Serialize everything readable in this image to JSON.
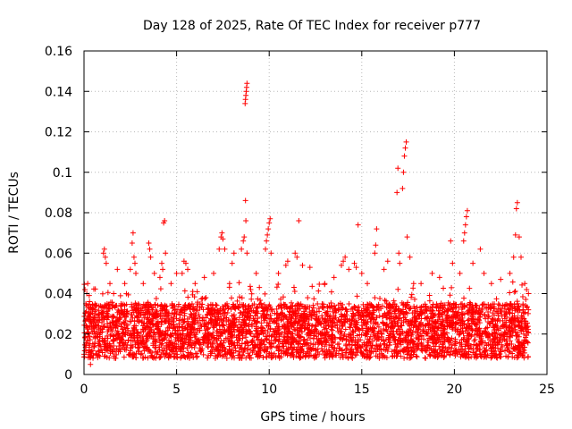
{
  "chart_data": {
    "type": "scatter",
    "title": "Day 128 of 2025, Rate Of TEC Index for receiver p777",
    "xlabel": "GPS time / hours",
    "ylabel": "ROTI / TECUs",
    "xlim": [
      0,
      25
    ],
    "ylim": [
      0,
      0.16
    ],
    "xticks": [
      0,
      5,
      10,
      15,
      20,
      25
    ],
    "xtick_labels": [
      "0",
      "5",
      "10",
      "15",
      "20",
      "25"
    ],
    "yticks": [
      0,
      0.02,
      0.04,
      0.06,
      0.08,
      0.1,
      0.12,
      0.14,
      0.16
    ],
    "ytick_labels": [
      "0",
      "0.02",
      "0.04",
      "0.06",
      "0.08",
      "0.1",
      "0.12",
      "0.14",
      "0.16"
    ],
    "grid": true,
    "marker": "+",
    "color": "#ff0000",
    "dense_band": {
      "x_range": [
        0,
        24
      ],
      "typical_y_range": [
        0.008,
        0.035
      ],
      "samples_per_hour": 160
    },
    "series": [
      {
        "name": "ROTI samples (representative)",
        "points": [
          [
            0.05,
            0.042
          ],
          [
            0.1,
            0.035
          ],
          [
            0.15,
            0.04
          ],
          [
            0.2,
            0.045
          ],
          [
            0.3,
            0.036
          ],
          [
            0.35,
            0.005
          ],
          [
            0.6,
            0.032
          ],
          [
            0.8,
            0.03
          ],
          [
            1.05,
            0.06
          ],
          [
            1.1,
            0.062
          ],
          [
            1.15,
            0.058
          ],
          [
            1.2,
            0.055
          ],
          [
            1.4,
            0.045
          ],
          [
            1.6,
            0.04
          ],
          [
            1.8,
            0.052
          ],
          [
            2.0,
            0.035
          ],
          [
            2.2,
            0.045
          ],
          [
            2.5,
            0.052
          ],
          [
            2.6,
            0.065
          ],
          [
            2.65,
            0.07
          ],
          [
            2.7,
            0.058
          ],
          [
            2.75,
            0.055
          ],
          [
            2.8,
            0.05
          ],
          [
            3.2,
            0.045
          ],
          [
            3.5,
            0.065
          ],
          [
            3.55,
            0.062
          ],
          [
            3.6,
            0.058
          ],
          [
            3.8,
            0.05
          ],
          [
            4.1,
            0.048
          ],
          [
            4.2,
            0.055
          ],
          [
            4.25,
            0.052
          ],
          [
            4.3,
            0.075
          ],
          [
            4.35,
            0.076
          ],
          [
            4.4,
            0.06
          ],
          [
            4.7,
            0.045
          ],
          [
            5.0,
            0.05
          ],
          [
            5.3,
            0.05
          ],
          [
            5.4,
            0.056
          ],
          [
            5.5,
            0.055
          ],
          [
            5.6,
            0.052
          ],
          [
            6.0,
            0.045
          ],
          [
            6.5,
            0.048
          ],
          [
            7.0,
            0.05
          ],
          [
            7.3,
            0.062
          ],
          [
            7.4,
            0.068
          ],
          [
            7.45,
            0.07
          ],
          [
            7.5,
            0.067
          ],
          [
            7.6,
            0.062
          ],
          [
            8.0,
            0.055
          ],
          [
            8.1,
            0.06
          ],
          [
            8.5,
            0.062
          ],
          [
            8.6,
            0.066
          ],
          [
            8.65,
            0.068
          ],
          [
            8.7,
            0.134
          ],
          [
            8.72,
            0.136
          ],
          [
            8.74,
            0.138
          ],
          [
            8.76,
            0.14
          ],
          [
            8.78,
            0.142
          ],
          [
            8.8,
            0.144
          ],
          [
            8.72,
            0.086
          ],
          [
            8.74,
            0.076
          ],
          [
            8.8,
            0.06
          ],
          [
            9.0,
            0.042
          ],
          [
            9.3,
            0.05
          ],
          [
            9.8,
            0.062
          ],
          [
            9.85,
            0.066
          ],
          [
            9.9,
            0.069
          ],
          [
            9.95,
            0.072
          ],
          [
            10.0,
            0.075
          ],
          [
            10.05,
            0.077
          ],
          [
            10.1,
            0.06
          ],
          [
            10.5,
            0.05
          ],
          [
            10.9,
            0.054
          ],
          [
            11.0,
            0.056
          ],
          [
            11.4,
            0.06
          ],
          [
            11.5,
            0.058
          ],
          [
            11.6,
            0.076
          ],
          [
            11.8,
            0.054
          ],
          [
            12.2,
            0.053
          ],
          [
            13.0,
            0.045
          ],
          [
            13.5,
            0.048
          ],
          [
            13.9,
            0.054
          ],
          [
            14.0,
            0.056
          ],
          [
            14.1,
            0.058
          ],
          [
            14.3,
            0.052
          ],
          [
            14.6,
            0.055
          ],
          [
            14.7,
            0.053
          ],
          [
            14.8,
            0.074
          ],
          [
            15.0,
            0.05
          ],
          [
            15.3,
            0.045
          ],
          [
            15.7,
            0.06
          ],
          [
            15.75,
            0.064
          ],
          [
            15.8,
            0.072
          ],
          [
            16.2,
            0.052
          ],
          [
            16.4,
            0.056
          ],
          [
            16.9,
            0.09
          ],
          [
            16.95,
            0.102
          ],
          [
            17.0,
            0.06
          ],
          [
            17.05,
            0.055
          ],
          [
            17.2,
            0.092
          ],
          [
            17.25,
            0.1
          ],
          [
            17.3,
            0.108
          ],
          [
            17.35,
            0.112
          ],
          [
            17.4,
            0.115
          ],
          [
            17.45,
            0.068
          ],
          [
            17.6,
            0.058
          ],
          [
            17.8,
            0.045
          ],
          [
            18.2,
            0.045
          ],
          [
            18.8,
            0.05
          ],
          [
            19.2,
            0.048
          ],
          [
            19.8,
            0.066
          ],
          [
            19.9,
            0.055
          ],
          [
            20.3,
            0.05
          ],
          [
            20.5,
            0.066
          ],
          [
            20.55,
            0.07
          ],
          [
            20.6,
            0.074
          ],
          [
            20.65,
            0.078
          ],
          [
            20.7,
            0.081
          ],
          [
            21.0,
            0.055
          ],
          [
            21.4,
            0.062
          ],
          [
            21.6,
            0.05
          ],
          [
            22.0,
            0.045
          ],
          [
            22.5,
            0.047
          ],
          [
            23.0,
            0.05
          ],
          [
            23.2,
            0.058
          ],
          [
            23.3,
            0.069
          ],
          [
            23.35,
            0.082
          ],
          [
            23.4,
            0.085
          ],
          [
            23.5,
            0.068
          ],
          [
            23.6,
            0.058
          ],
          [
            23.8,
            0.045
          ],
          [
            23.9,
            0.042
          ],
          [
            24.0,
            0.04
          ]
        ]
      }
    ]
  }
}
